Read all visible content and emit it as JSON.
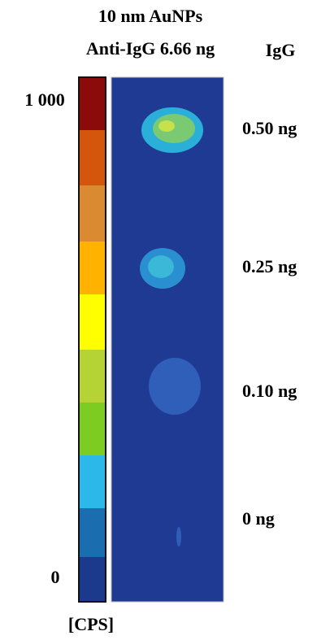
{
  "header": {
    "line1": "10 nm AuNPs",
    "line2": "Anti-IgG 6.66 ng",
    "column": "IgG"
  },
  "scale": {
    "max": "1 000",
    "min": "0",
    "unit": "[CPS]"
  },
  "rows": [
    "0.50 ng",
    "0.25 ng",
    "0.10 ng",
    "0 ng"
  ]
}
